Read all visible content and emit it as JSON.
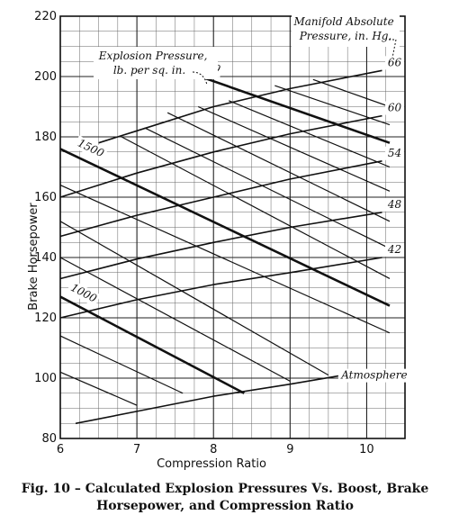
{
  "caption": {
    "line1": "Fig. 10 – Calculated Explosion Pressures Vs. Boost, Brake",
    "line2": "Horsepower, and Compression Ratio"
  },
  "chart_data": {
    "type": "line",
    "title": "",
    "xlabel": "Compression Ratio",
    "ylabel": "Brake Horsepower",
    "xlim": [
      6,
      10.5
    ],
    "ylim": [
      80,
      220
    ],
    "x_ticks": [
      6,
      7,
      8,
      9,
      10
    ],
    "y_ticks": [
      80,
      100,
      120,
      140,
      160,
      180,
      200,
      220
    ],
    "x_minor_step": 0.25,
    "y_minor_step": 5,
    "grid": true,
    "manifold_pressure_title": "Manifold Absolute Pressure, in. Hg.",
    "explosion_pressure_title": "Explosion Pressure, lb. per sq. in.",
    "manifold_pressure_series": [
      {
        "name": "Atmosphere",
        "x": [
          6.2,
          7,
          8,
          9,
          9.7
        ],
        "y": [
          85,
          89,
          94,
          98,
          101
        ]
      },
      {
        "name": "42",
        "x": [
          6,
          7,
          8,
          9,
          10.2
        ],
        "y": [
          120,
          126,
          131,
          135,
          140
        ]
      },
      {
        "name": "48",
        "x": [
          6,
          7,
          8,
          9,
          10.2
        ],
        "y": [
          133,
          139.5,
          145,
          150,
          155
        ]
      },
      {
        "name": "54",
        "x": [
          6,
          7,
          8,
          9,
          10.2
        ],
        "y": [
          147,
          154,
          160,
          166,
          172
        ]
      },
      {
        "name": "60",
        "x": [
          6,
          7,
          8,
          9,
          10.2
        ],
        "y": [
          160,
          168,
          175,
          181,
          187
        ]
      },
      {
        "name": "66",
        "x": [
          6.5,
          7,
          8,
          9,
          10.2
        ],
        "y": [
          178,
          182,
          190,
          196,
          202
        ]
      }
    ],
    "explosion_pressure_lines": [
      {
        "name": "1000",
        "x": [
          6.0,
          8.4
        ],
        "y": [
          127,
          95
        ],
        "major": true
      },
      {
        "name": "1500",
        "x": [
          6.0,
          10.3
        ],
        "y": [
          176,
          124
        ],
        "major": true
      },
      {
        "name": "2000",
        "x": [
          7.6,
          10.3
        ],
        "y": [
          202,
          178
        ],
        "major": true
      }
    ],
    "explosion_pressure_minor_lines": [
      {
        "x": [
          6.0,
          7.0
        ],
        "y": [
          102,
          91
        ]
      },
      {
        "x": [
          6.0,
          7.6
        ],
        "y": [
          114,
          95
        ]
      },
      {
        "x": [
          6.0,
          9.0
        ],
        "y": [
          140,
          99
        ]
      },
      {
        "x": [
          6.0,
          9.5
        ],
        "y": [
          152,
          101
        ]
      },
      {
        "x": [
          6.0,
          10.3
        ],
        "y": [
          164,
          115
        ]
      },
      {
        "x": [
          6.8,
          10.3
        ],
        "y": [
          180,
          133
        ]
      },
      {
        "x": [
          7.1,
          10.3
        ],
        "y": [
          183,
          143
        ]
      },
      {
        "x": [
          7.4,
          10.3
        ],
        "y": [
          188,
          152
        ]
      },
      {
        "x": [
          7.8,
          10.3
        ],
        "y": [
          190,
          162
        ]
      },
      {
        "x": [
          8.2,
          10.3
        ],
        "y": [
          192,
          170
        ]
      },
      {
        "x": [
          8.8,
          10.3
        ],
        "y": [
          197,
          184
        ]
      },
      {
        "x": [
          9.3,
          10.3
        ],
        "y": [
          199,
          190
        ]
      }
    ]
  }
}
